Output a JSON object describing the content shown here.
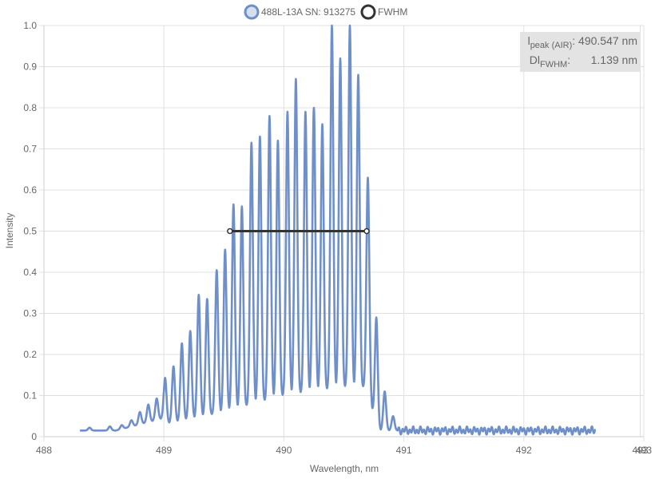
{
  "chart_data": {
    "type": "line",
    "xlabel": "Wavelength, nm",
    "ylabel": "Intensity",
    "xlim": [
      488,
      493
    ],
    "ylim": [
      0,
      1
    ],
    "x_ticks": [
      "488",
      "489",
      "490",
      "491",
      "492",
      "493"
    ],
    "x_tick_values": [
      488,
      489,
      490,
      491,
      492,
      493
    ],
    "x_extra_tick": {
      "label": "493",
      "value": 492.97
    },
    "y_ticks": [
      "0",
      "0.1",
      "0.2",
      "0.3",
      "0.4",
      "0.5",
      "0.6",
      "0.7",
      "0.8",
      "0.9",
      "1.0"
    ],
    "y_tick_values": [
      0,
      0.1,
      0.2,
      0.3,
      0.4,
      0.5,
      0.6,
      0.7,
      0.8,
      0.9,
      1.0
    ],
    "grid": true,
    "legend_position": "top-center",
    "series": [
      {
        "name": "488L-13A SN: 913275",
        "color": "#6e8fc9",
        "x_range": [
          488.3,
          492.6
        ],
        "noise_floor": 0.015,
        "fringe_period_nm": 0.0755,
        "peaks": [
          {
            "x": 488.38,
            "y": 0.022
          },
          {
            "x": 488.55,
            "y": 0.025
          },
          {
            "x": 488.65,
            "y": 0.028
          },
          {
            "x": 488.73,
            "y": 0.04
          },
          {
            "x": 488.8,
            "y": 0.06
          },
          {
            "x": 488.87,
            "y": 0.078
          },
          {
            "x": 488.94,
            "y": 0.093
          },
          {
            "x": 489.01,
            "y": 0.143
          },
          {
            "x": 489.08,
            "y": 0.171
          },
          {
            "x": 489.15,
            "y": 0.227
          },
          {
            "x": 489.22,
            "y": 0.257
          },
          {
            "x": 489.29,
            "y": 0.345
          },
          {
            "x": 489.36,
            "y": 0.335
          },
          {
            "x": 489.44,
            "y": 0.405
          },
          {
            "x": 489.51,
            "y": 0.455
          },
          {
            "x": 489.58,
            "y": 0.565
          },
          {
            "x": 489.65,
            "y": 0.56
          },
          {
            "x": 489.73,
            "y": 0.715
          },
          {
            "x": 489.8,
            "y": 0.73
          },
          {
            "x": 489.88,
            "y": 0.78
          },
          {
            "x": 489.95,
            "y": 0.72
          },
          {
            "x": 490.03,
            "y": 0.79
          },
          {
            "x": 490.1,
            "y": 0.87
          },
          {
            "x": 490.18,
            "y": 0.79
          },
          {
            "x": 490.25,
            "y": 0.8
          },
          {
            "x": 490.32,
            "y": 0.76
          },
          {
            "x": 490.4,
            "y": 1.0
          },
          {
            "x": 490.47,
            "y": 0.92
          },
          {
            "x": 490.55,
            "y": 1.0
          },
          {
            "x": 490.62,
            "y": 0.88
          },
          {
            "x": 490.7,
            "y": 0.63
          },
          {
            "x": 490.77,
            "y": 0.29
          },
          {
            "x": 490.84,
            "y": 0.11
          },
          {
            "x": 490.91,
            "y": 0.05
          }
        ],
        "valleys": [
          {
            "x": 489.0,
            "y": 0.03
          },
          {
            "x": 489.5,
            "y": 0.06
          },
          {
            "x": 490.0,
            "y": 0.1
          },
          {
            "x": 490.5,
            "y": 0.12
          },
          {
            "x": 490.7,
            "y": 0.12
          },
          {
            "x": 490.76,
            "y": 0.03
          }
        ]
      },
      {
        "name": "FWHM",
        "color": "#333333",
        "x": [
          489.55,
          490.69
        ],
        "y": [
          0.5,
          0.5
        ]
      }
    ]
  },
  "info_box": {
    "peak_label_main": "l",
    "peak_label_sub": "peak (AIR)",
    "peak_value": "490.547 nm",
    "fwhm_label_main": "Dl",
    "fwhm_label_sub": "FWHM",
    "fwhm_value": "1.139 nm"
  }
}
